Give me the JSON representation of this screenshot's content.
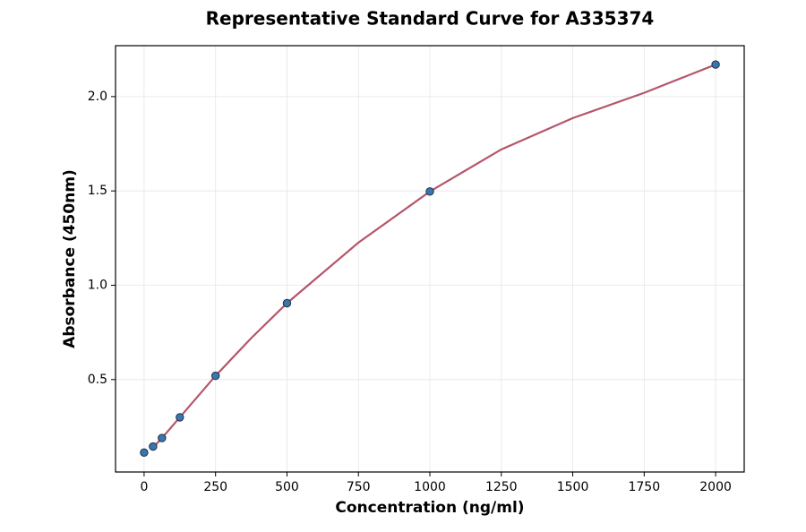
{
  "chart_data": {
    "type": "scatter",
    "title": "Representative Standard Curve for A335374",
    "x_label": "Concentration (ng/ml)",
    "y_label": "Absorbance (450nm)",
    "points": {
      "color": "#3a76ae",
      "edge_color": "#1f2f4a",
      "x": [
        0,
        31.25,
        62.5,
        125,
        250,
        500,
        1000,
        2000
      ],
      "values": [
        0.113,
        0.145,
        0.19,
        0.3,
        0.52,
        0.905,
        1.497,
        2.17
      ]
    },
    "curve": {
      "color": "#b5566a",
      "x": [
        31.25,
        62.5,
        125,
        250,
        375,
        500,
        750,
        1000,
        1250,
        1500,
        1750,
        2000
      ],
      "values": [
        0.14,
        0.19,
        0.3,
        0.52,
        0.72,
        0.905,
        1.226,
        1.497,
        1.72,
        1.886,
        2.02,
        2.17
      ]
    },
    "xlim": [
      -100,
      2100
    ],
    "ylim": [
      0.01,
      2.27
    ],
    "xticks": [
      0,
      250,
      500,
      750,
      1000,
      1250,
      1500,
      1750,
      2000
    ],
    "yticks": [
      0.5,
      {
        "value": 1.0,
        "label": "1.0"
      },
      1.5,
      {
        "value": 2.0,
        "label": "2.0"
      }
    ],
    "grid": true
  }
}
